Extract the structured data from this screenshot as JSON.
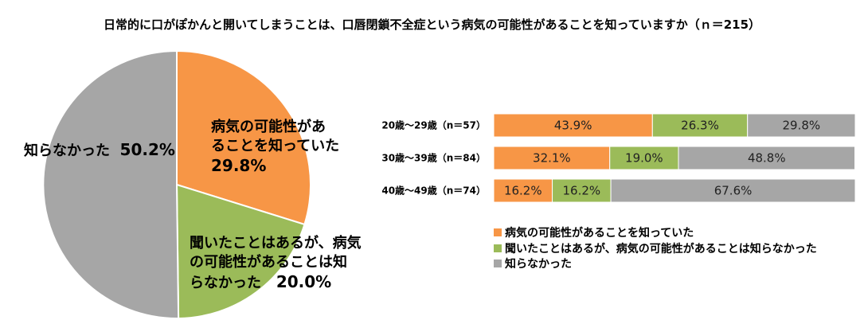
{
  "title": "日常的に口がぽかんと開いてしまうことは、口唇閉鎖不全症という病気の可能性があることを知っていますか（ｎ＝215）",
  "colors": {
    "knew": "#F79646",
    "heard": "#9BBB59",
    "didnt": "#A6A6A6"
  },
  "pie_labels": {
    "knew_line1": "病気の可能性があ",
    "knew_line2": "ることを知っていた",
    "knew_pct": "29.8%",
    "heard_line1": "聞いたことはあるが、病気",
    "heard_line2": "の可能性があることは知",
    "heard_line3": "らなかった",
    "heard_pct": "20.0%",
    "didnt_text": "知らなかった",
    "didnt_pct": "50.2%"
  },
  "legend": {
    "knew": "病気の可能性があることを知っていた",
    "heard": "聞いたことはあるが、病気の可能性があることは知らなかった",
    "didnt": "知らなかった"
  },
  "chart_data": [
    {
      "type": "pie",
      "categories": [
        "病気の可能性があることを知っていた",
        "聞いたことはあるが、病気の可能性があることは知らなかった",
        "知らなかった"
      ],
      "values": [
        29.8,
        20.0,
        50.2
      ]
    },
    {
      "type": "bar",
      "orientation": "horizontal",
      "stacked": true,
      "percent_scale": true,
      "categories": [
        "20歳～29歳（n＝57）",
        "30歳～39歳（n＝84）",
        "40歳～49歳（n＝74）"
      ],
      "series": [
        {
          "name": "病気の可能性があることを知っていた",
          "values": [
            43.9,
            32.1,
            16.2
          ]
        },
        {
          "name": "聞いたことはあるが、病気の可能性があることは知らなかった",
          "values": [
            26.3,
            19.0,
            16.2
          ]
        },
        {
          "name": "知らなかった",
          "values": [
            29.8,
            48.8,
            67.6
          ]
        }
      ],
      "legend_position": "bottom"
    }
  ]
}
